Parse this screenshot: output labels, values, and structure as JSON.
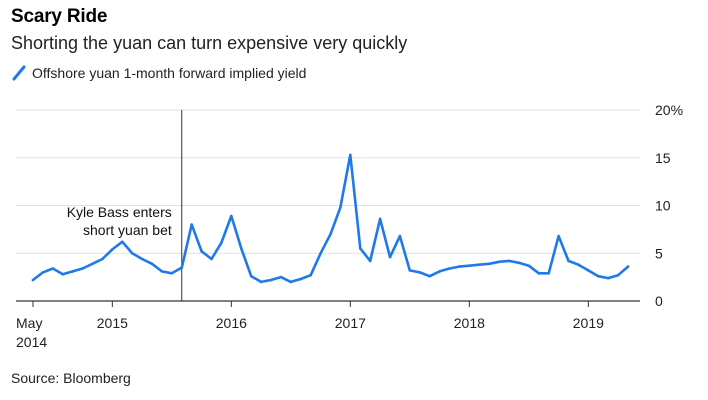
{
  "header": {
    "title": "Scary Ride",
    "subtitle": "Shorting the yuan can turn expensive very quickly"
  },
  "source": "Source: Bloomberg",
  "colors": {
    "series": "#1f7ae8",
    "grid": "#e2e2e2",
    "axis": "#333333",
    "marker": "#333333"
  },
  "chart_data": {
    "type": "line",
    "title": "Scary Ride",
    "subtitle": "Shorting the yuan can turn expensive very quickly",
    "legend": {
      "position": "top-left"
    },
    "grid": true,
    "x_range": [
      "2014-05",
      "2019-05"
    ],
    "x_ticks": [
      {
        "x": "2014-05",
        "label": [
          "May",
          "2014"
        ]
      },
      {
        "x": "2015-01",
        "label": [
          "2015"
        ]
      },
      {
        "x": "2016-01",
        "label": [
          "2016"
        ]
      },
      {
        "x": "2017-01",
        "label": [
          "2017"
        ]
      },
      {
        "x": "2018-01",
        "label": [
          "2018"
        ]
      },
      {
        "x": "2019-01",
        "label": [
          "2019"
        ]
      }
    ],
    "y_range": [
      0,
      20
    ],
    "y_ticks": [
      {
        "y": 0,
        "label": "0"
      },
      {
        "y": 5,
        "label": "5"
      },
      {
        "y": 10,
        "label": "10"
      },
      {
        "y": 15,
        "label": "15"
      },
      {
        "y": 20,
        "label": "20%"
      }
    ],
    "annotations": [
      {
        "x": "2015-08",
        "lines": [
          "Kyle Bass enters",
          "short yuan bet"
        ]
      }
    ],
    "series": [
      {
        "name": "Offshore yuan 1-month forward implied yield",
        "x": [
          "2014-05",
          "2014-06",
          "2014-07",
          "2014-08",
          "2014-09",
          "2014-10",
          "2014-11",
          "2014-12",
          "2015-01",
          "2015-02",
          "2015-03",
          "2015-04",
          "2015-05",
          "2015-06",
          "2015-07",
          "2015-08",
          "2015-09",
          "2015-10",
          "2015-11",
          "2015-12",
          "2016-01",
          "2016-02",
          "2016-03",
          "2016-04",
          "2016-05",
          "2016-06",
          "2016-07",
          "2016-08",
          "2016-09",
          "2016-10",
          "2016-11",
          "2016-12",
          "2017-01",
          "2017-02",
          "2017-03",
          "2017-04",
          "2017-05",
          "2017-06",
          "2017-07",
          "2017-08",
          "2017-09",
          "2017-10",
          "2017-11",
          "2017-12",
          "2018-01",
          "2018-02",
          "2018-03",
          "2018-04",
          "2018-05",
          "2018-06",
          "2018-07",
          "2018-08",
          "2018-09",
          "2018-10",
          "2018-11",
          "2018-12",
          "2019-01",
          "2019-02",
          "2019-03",
          "2019-04",
          "2019-05"
        ],
        "y": [
          2.2,
          3.0,
          3.4,
          2.8,
          3.1,
          3.4,
          3.9,
          4.4,
          5.4,
          6.2,
          5.0,
          4.4,
          3.9,
          3.1,
          2.9,
          3.5,
          8.0,
          5.2,
          4.4,
          6.1,
          8.9,
          5.5,
          2.6,
          2.0,
          2.2,
          2.5,
          2.0,
          2.3,
          2.7,
          5.0,
          7.0,
          9.8,
          15.3,
          5.5,
          4.2,
          8.6,
          4.6,
          6.8,
          3.2,
          3.0,
          2.6,
          3.1,
          3.4,
          3.6,
          3.7,
          3.8,
          3.9,
          4.1,
          4.2,
          4.0,
          3.7,
          2.9,
          2.9,
          6.8,
          4.2,
          3.8,
          3.2,
          2.6,
          2.4,
          2.7,
          3.6
        ]
      }
    ]
  }
}
